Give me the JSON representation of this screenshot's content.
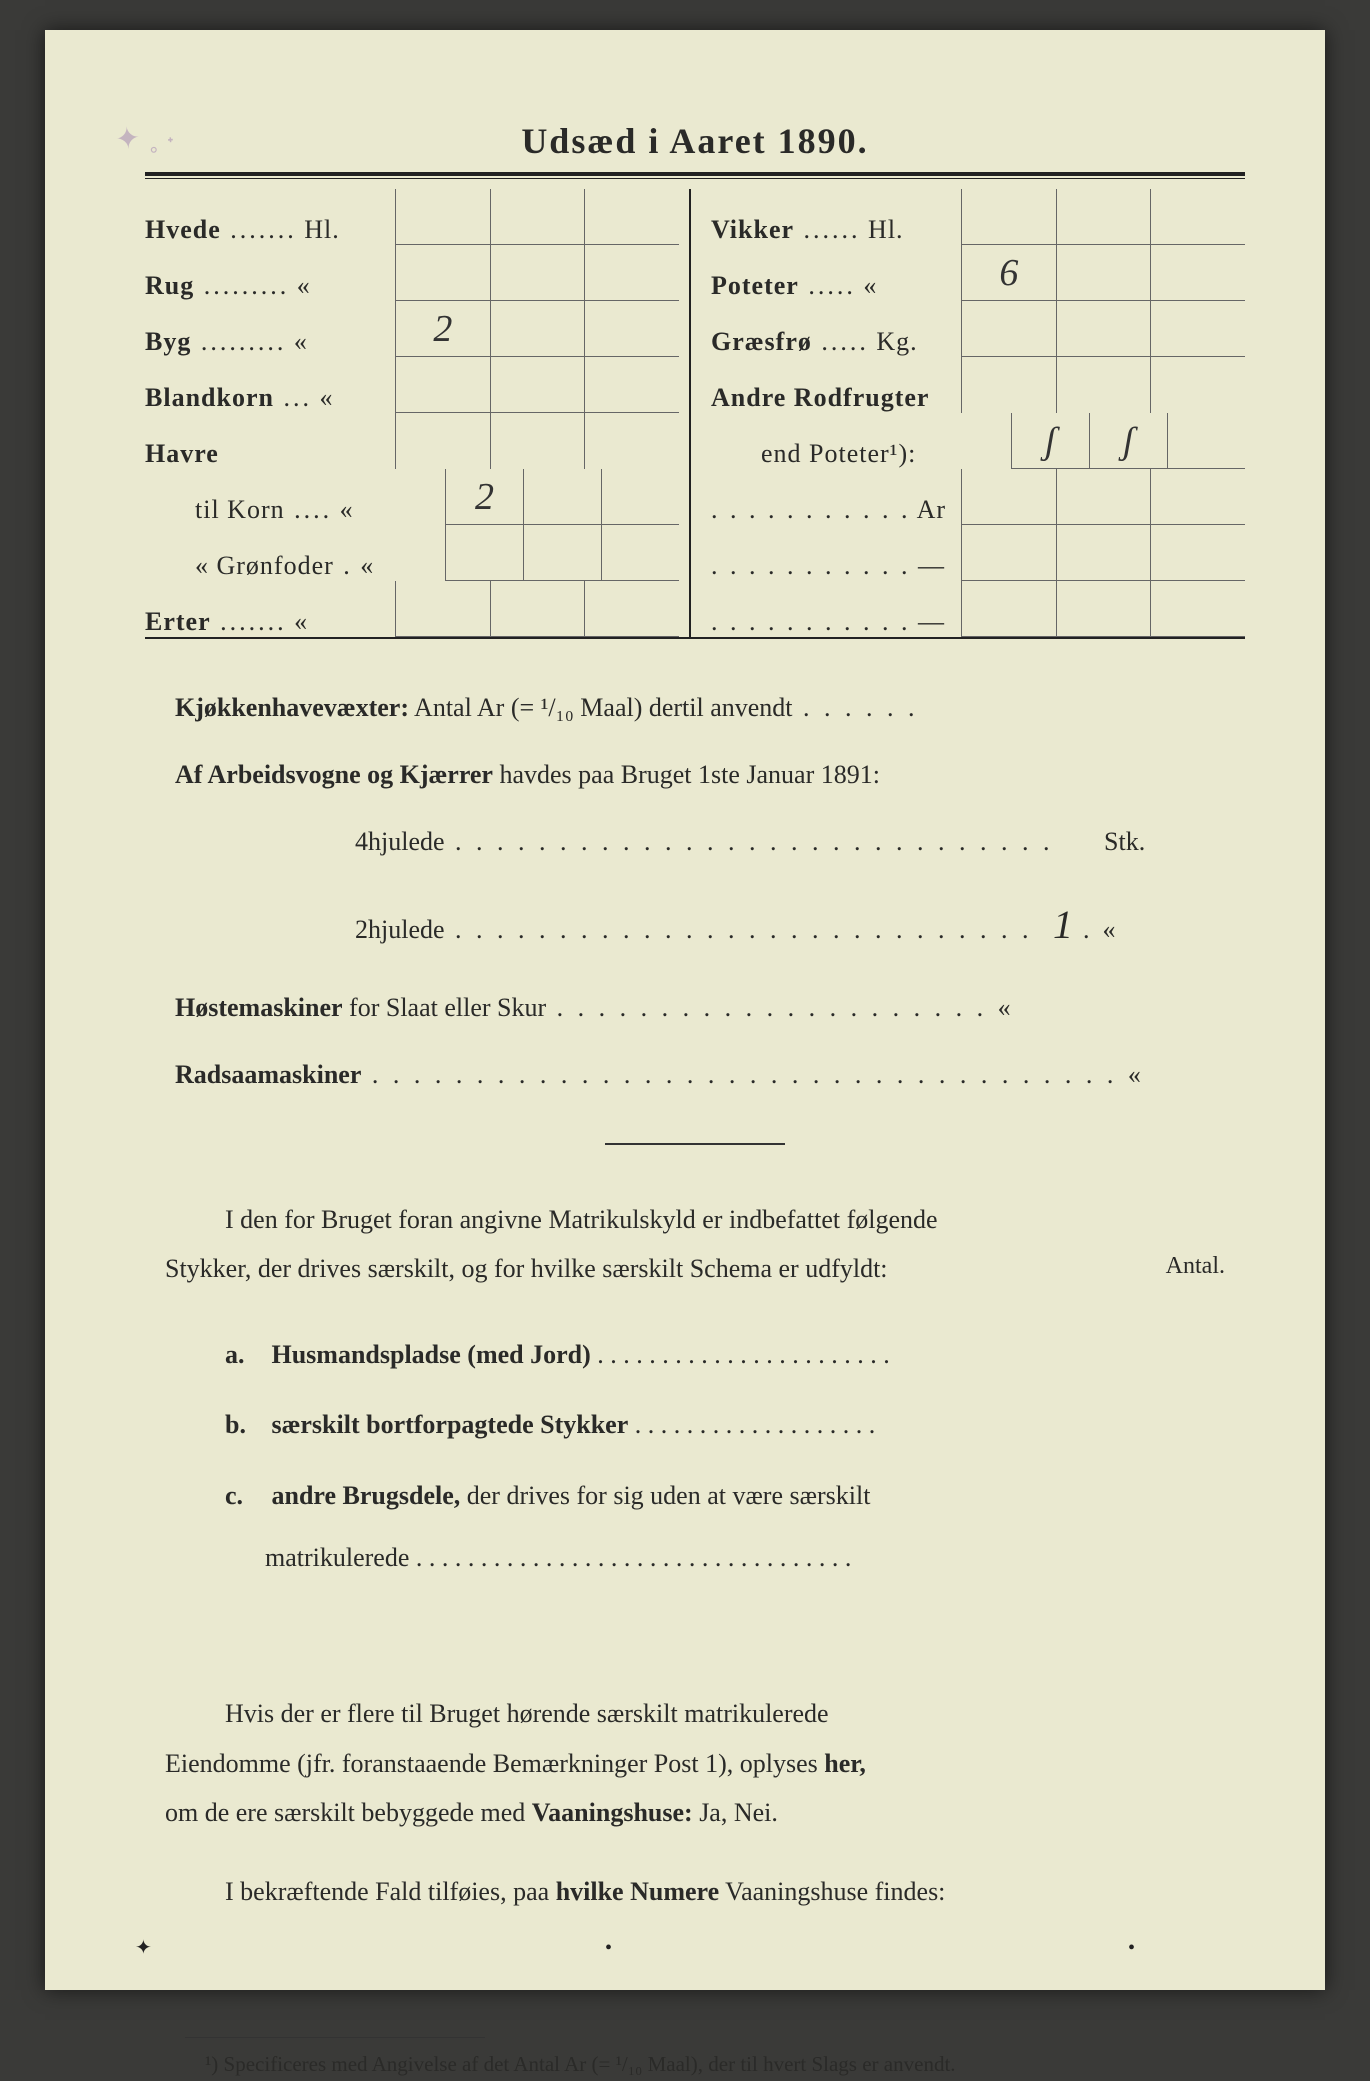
{
  "colors": {
    "paper": "#eae9d0",
    "ink": "#2a2a28",
    "border": "#222222",
    "cell_border": "#666666",
    "handwriting": "#333333",
    "smudge": "#a080b0",
    "background": "#3a3a38"
  },
  "typography": {
    "title_fontsize": 36,
    "body_fontsize": 26,
    "footnote_fontsize": 21,
    "handwriting_fontsize": 38,
    "serif_family": "Georgia, Times New Roman, serif",
    "script_family": "Brush Script MT, cursive"
  },
  "title": "Udsæd i Aaret 1890.",
  "left_rows": [
    {
      "label": "Hvede",
      "unit": "Hl.",
      "value": "",
      "bold": true
    },
    {
      "label": "Rug",
      "unit": "«",
      "value": "",
      "bold": true
    },
    {
      "label": "Byg",
      "unit": "«",
      "value": "2",
      "bold": true
    },
    {
      "label": "Blandkorn",
      "unit": "«",
      "value": "",
      "bold": true
    },
    {
      "label": "Havre",
      "unit": "",
      "value": "",
      "bold": true,
      "nocell": true
    },
    {
      "label": "til Korn",
      "unit": "«",
      "value": "2",
      "bold": false,
      "indent": true
    },
    {
      "label": "« Grønfoder",
      "unit": "«",
      "value": "",
      "bold": false,
      "indent": true
    },
    {
      "label": "Erter",
      "unit": "«",
      "value": "",
      "bold": true
    }
  ],
  "right_rows": [
    {
      "label": "Vikker",
      "unit": "Hl.",
      "value": "",
      "bold": true
    },
    {
      "label": "Poteter",
      "unit": "«",
      "value": "6",
      "bold": true
    },
    {
      "label": "Græsfrø",
      "unit": "Kg.",
      "value": "",
      "bold": true
    },
    {
      "label": "Andre Rodfrugter",
      "unit": "",
      "value": "",
      "bold": true,
      "nocell": true
    },
    {
      "label": "end Poteter¹):",
      "unit": "",
      "value": "ʃ",
      "value2": "ʃ",
      "bold": false,
      "indent": true
    },
    {
      "label": "",
      "unit": "Ar",
      "value": "",
      "bold": false,
      "dotsonly": true
    },
    {
      "label": "",
      "unit": "—",
      "value": "",
      "bold": false,
      "dotsonly": true
    },
    {
      "label": "",
      "unit": "—",
      "value": "",
      "bold": false,
      "dotsonly": true
    }
  ],
  "questions": {
    "q1_lead": "Kjøkkenhavevæxter:",
    "q1_rest": " Antal Ar (= ¹/₁₀ Maal) dertil anvendt",
    "q2_lead": "Af Arbeidsvogne og Kjærrer",
    "q2_rest": " havdes paa Bruget 1ste Januar 1891:",
    "q2a_label": "4hjulede",
    "q2a_unit": "Stk.",
    "q2a_value": "",
    "q2b_label": "2hjulede",
    "q2b_unit": "«",
    "q2b_value": "1",
    "q3_lead": "Høstemaskiner",
    "q3_rest": " for Slaat eller Skur",
    "q3_unit": "«",
    "q4_lead": "Radsaamaskiner",
    "q4_unit": "«"
  },
  "para1_a": "I den for Bruget foran angivne Matrikulskyld er indbefattet følgende",
  "para1_b": "Stykker, der drives særskilt, og for hvilke særskilt Schema er udfyldt:",
  "para1_label": "Antal.",
  "list": {
    "a_marker": "a.",
    "a_text": "Husmandspladse (med Jord)",
    "b_marker": "b.",
    "b_text": "særskilt bortforpagtede Stykker",
    "c_marker": "c.",
    "c_lead": "andre Brugsdele,",
    "c_rest": " der drives for sig uden at være særskilt",
    "c_line2": "matrikulerede"
  },
  "para2_a": "Hvis der er flere til Bruget hørende særskilt matrikulerede",
  "para2_b": "Eiendomme (jfr. foranstaaende Bemærkninger Post 1), oplyses ",
  "para2_b_bold": "her,",
  "para2_c": "om de ere særskilt bebyggede med ",
  "para2_c_bold": "Vaaningshuse:",
  "para2_c_end": " Ja, Nei.",
  "para3_a": "I bekræftende Fald tilføies, paa ",
  "para3_bold": "hvilke Numere",
  "para3_b": " Vaaningshuse findes:",
  "footnote": "¹) Specificeres med Angivelse af det Antal Ar (= ¹/₁₀ Maal), der til hvert Slags er anvendt."
}
